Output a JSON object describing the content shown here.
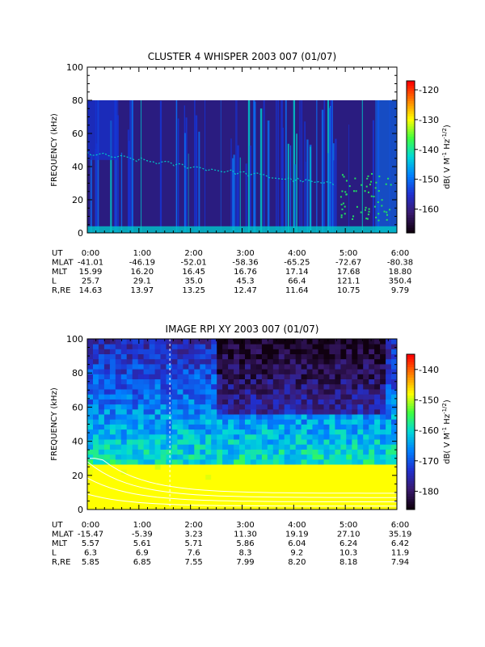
{
  "chart_data": [
    {
      "type": "heatmap",
      "title": "CLUSTER 4 WHISPER 2003 007 (01/07)",
      "ylabel": "FREQUENCY (kHz)",
      "ylim": [
        0,
        100
      ],
      "yticks": [
        "0",
        "20",
        "40",
        "60",
        "80",
        "100"
      ],
      "x_ticks": [
        "0:00",
        "1:00",
        "2:00",
        "3:00",
        "4:00",
        "5:00",
        "6:00"
      ],
      "colorbar": {
        "label": "dB( V M",
        "label_sup1": "-1",
        "label_mid": " Hz",
        "label_sup2": "-1/2",
        "label_end": ")",
        "ticks": [
          "-120",
          "-130",
          "-140",
          "-150",
          "-160"
        ],
        "range": [
          -168,
          -117
        ]
      },
      "data_ceiling_khz": 80,
      "ephemeris": {
        "labels": [
          "UT",
          "MLAT",
          "MLT",
          "L",
          "R,RE"
        ],
        "rows": [
          [
            "0:00",
            "1:00",
            "2:00",
            "3:00",
            "4:00",
            "5:00",
            "6:00"
          ],
          [
            "-41.01",
            "-46.19",
            "-52.01",
            "-58.36",
            "-65.25",
            "-72.67",
            "-80.38"
          ],
          [
            "15.99",
            "16.20",
            "16.45",
            "16.76",
            "17.14",
            "17.68",
            "18.80"
          ],
          [
            "25.7",
            "29.1",
            "35.0",
            "45.3",
            "66.4",
            "121.1",
            "350.4"
          ],
          [
            "14.63",
            "13.97",
            "13.25",
            "12.47",
            "11.64",
            "10.75",
            "9.79"
          ]
        ]
      },
      "colors": [
        "#2a1c80",
        "#1632d2",
        "#0a6cf0",
        "#00c8c8",
        "#20e060"
      ]
    },
    {
      "type": "heatmap",
      "title": "IMAGE RPI XY 2003 007 (01/07)",
      "ylabel": "FREQUENCY (kHz)",
      "ylim": [
        0,
        100
      ],
      "yticks": [
        "0",
        "20",
        "40",
        "60",
        "80",
        "100"
      ],
      "x_ticks": [
        "0:00",
        "1:00",
        "2:00",
        "3:00",
        "4:00",
        "5:00",
        "6:00"
      ],
      "colorbar": {
        "label": "dB( V M",
        "label_sup1": "-1",
        "label_mid": " Hz",
        "label_sup2": "-1/2",
        "label_end": ")",
        "ticks": [
          "-140",
          "-150",
          "-160",
          "-170",
          "-180"
        ],
        "range": [
          -186,
          -135
        ]
      },
      "ephemeris": {
        "labels": [
          "UT",
          "MLAT",
          "MLT",
          "L",
          "R,RE"
        ],
        "rows": [
          [
            "0:00",
            "1:00",
            "2:00",
            "3:00",
            "4:00",
            "5:00",
            "6:00"
          ],
          [
            "-15.47",
            "-5.39",
            "3.23",
            "11.30",
            "19.19",
            "27.10",
            "35.19"
          ],
          [
            "5.57",
            "5.61",
            "5.71",
            "5.86",
            "6.04",
            "6.24",
            "6.42"
          ],
          [
            "6.3",
            "6.9",
            "7.6",
            "8.3",
            "9.2",
            "10.3",
            "11.9"
          ],
          [
            "5.85",
            "6.85",
            "7.55",
            "7.99",
            "8.20",
            "8.18",
            "7.94"
          ]
        ]
      },
      "colors": [
        "#200020",
        "#2a1c80",
        "#1050e0",
        "#00b4d8",
        "#30e060",
        "#f0f000"
      ]
    }
  ]
}
